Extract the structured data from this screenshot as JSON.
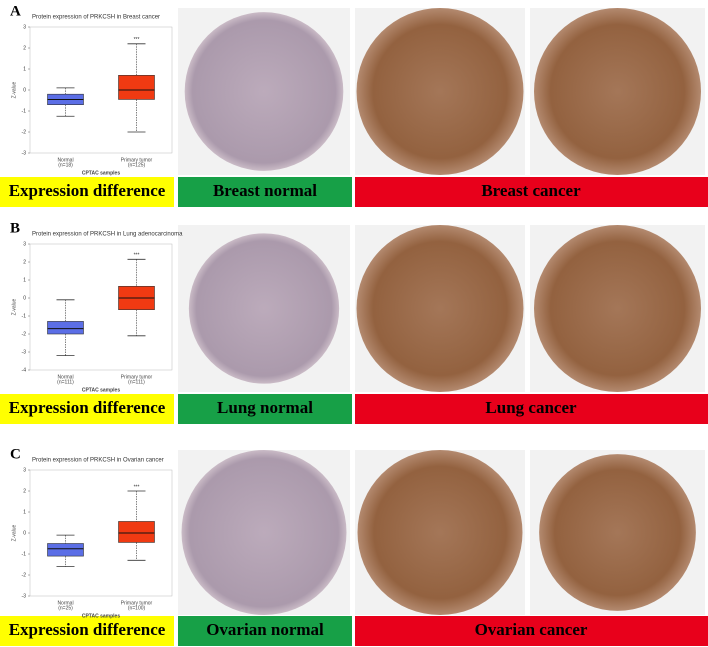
{
  "chart_data": [
    {
      "type": "box",
      "title": "Protein expression of PRKCSH in Breast cancer",
      "ylabel": "Z-value",
      "xlabel": "CPTAC samples",
      "categories": [
        "Normal",
        "Primary tumor"
      ],
      "sample_sizes": [
        "(n=18)",
        "(n=125)"
      ],
      "colors": [
        "#5b6ee6",
        "#f03a12"
      ],
      "boxes": [
        {
          "min": -1.25,
          "q1": -0.7,
          "median": -0.45,
          "q3": -0.2,
          "max": 0.1
        },
        {
          "min": -2.0,
          "q1": -0.45,
          "median": 0,
          "q3": 0.7,
          "max": 2.2
        }
      ],
      "annotation": "***",
      "ylim": [
        -3,
        3
      ],
      "yticks": [
        -3,
        -2,
        -1,
        0,
        1,
        2,
        3
      ]
    },
    {
      "type": "box",
      "title": "Protein expression of PRKCSH in Lung adenocarcinoma",
      "ylabel": "Z-value",
      "xlabel": "CPTAC samples",
      "categories": [
        "Normal",
        "Primary tumor"
      ],
      "sample_sizes": [
        "(n=111)",
        "(n=111)"
      ],
      "colors": [
        "#5b6ee6",
        "#f03a12"
      ],
      "boxes": [
        {
          "min": -3.2,
          "q1": -2.0,
          "median": -1.7,
          "q3": -1.3,
          "max": -0.1
        },
        {
          "min": -2.1,
          "q1": -0.65,
          "median": 0,
          "q3": 0.65,
          "max": 2.15
        }
      ],
      "annotation": "***",
      "ylim": [
        -4,
        3
      ],
      "yticks": [
        -4,
        -3,
        -2,
        -1,
        0,
        1,
        2,
        3
      ]
    },
    {
      "type": "box",
      "title": "Protein expression of PRKCSH in Ovarian cancer",
      "ylabel": "Z-value",
      "xlabel": "CPTAC samples",
      "categories": [
        "Normal",
        "Primary tumor"
      ],
      "sample_sizes": [
        "(n=25)",
        "(n=100)"
      ],
      "colors": [
        "#5b6ee6",
        "#f03a12"
      ],
      "boxes": [
        {
          "min": -1.6,
          "q1": -1.1,
          "median": -0.75,
          "q3": -0.5,
          "max": -0.1
        },
        {
          "min": -1.3,
          "q1": -0.45,
          "median": 0,
          "q3": 0.55,
          "max": 2.0
        }
      ],
      "annotation": "***",
      "ylim": [
        -3,
        3
      ],
      "yticks": [
        -3,
        -2,
        -1,
        0,
        1,
        2,
        3
      ]
    }
  ],
  "panels": [
    {
      "letter": "A",
      "difference_label": "Expression difference",
      "normal_label": "Breast normal",
      "cancer_label": "Breast cancer"
    },
    {
      "letter": "B",
      "difference_label": "Expression difference",
      "normal_label": "Lung normal",
      "cancer_label": "Lung cancer"
    },
    {
      "letter": "C",
      "difference_label": "Expression difference",
      "normal_label": "Ovarian normal",
      "cancer_label": "Ovarian cancer"
    }
  ]
}
